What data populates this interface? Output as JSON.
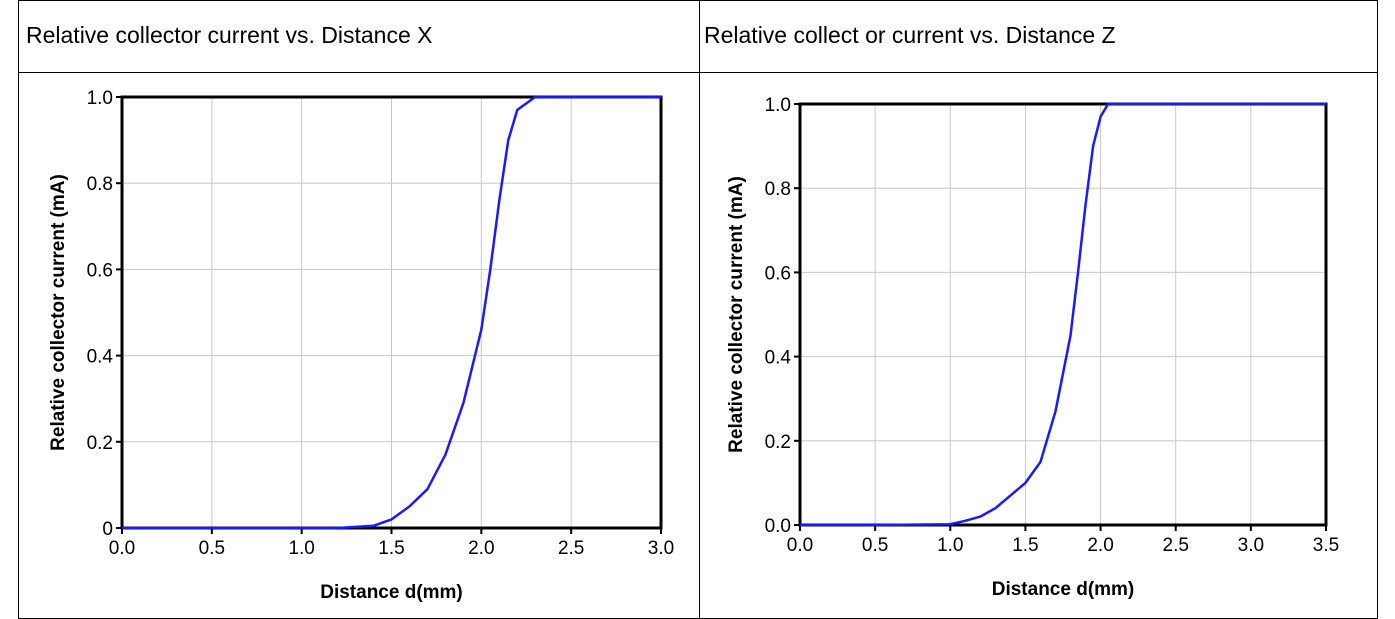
{
  "headers": {
    "left": "Relative collector current vs. Distance X",
    "right": "Relative collect or current vs. Distance Z"
  },
  "colors": {
    "curve": "#1a1aff",
    "grid": "#c8c8c8",
    "axis": "#000000"
  },
  "chart_data": [
    {
      "type": "line",
      "title": "Relative collector current vs. Distance X",
      "xlabel": "Distance d(mm)",
      "ylabel": "Relative collector current (mA)",
      "xlim": [
        0,
        3.0
      ],
      "ylim": [
        0,
        1.0
      ],
      "xticks": [
        "0.0",
        "0.5",
        "1.0",
        "1.5",
        "2.0",
        "2.5",
        "3.0"
      ],
      "yticks": [
        "0",
        "0.2",
        "0.4",
        "0.6",
        "0.8",
        "1.0"
      ],
      "grid": true,
      "series": [
        {
          "x": [
            0,
            0.5,
            1.0,
            1.2,
            1.4,
            1.5,
            1.6,
            1.7,
            1.8,
            1.9,
            2.0,
            2.05,
            2.1,
            2.15,
            2.2,
            2.3,
            2.4,
            2.5,
            3.0
          ],
          "y": [
            0.0,
            0.0,
            0.0,
            0.0,
            0.005,
            0.02,
            0.05,
            0.09,
            0.17,
            0.29,
            0.46,
            0.6,
            0.76,
            0.9,
            0.97,
            1.0,
            1.0,
            1.0,
            1.0
          ]
        }
      ]
    },
    {
      "type": "line",
      "title": "Relative collect or current vs. Distance Z",
      "xlabel": "Distance d(mm)",
      "ylabel": "Relative collector current (mA)",
      "xlim": [
        0,
        3.5
      ],
      "ylim": [
        0,
        1.0
      ],
      "xticks": [
        "0.0",
        "0.5",
        "1.0",
        "1.5",
        "2.0",
        "2.5",
        "3.0",
        "3.5"
      ],
      "yticks": [
        "0.0",
        "0.2",
        "0.4",
        "0.6",
        "0.8",
        "1.0"
      ],
      "grid": true,
      "series": [
        {
          "x": [
            0,
            0.5,
            1.0,
            1.1,
            1.2,
            1.3,
            1.5,
            1.6,
            1.7,
            1.8,
            1.85,
            1.9,
            1.95,
            2.0,
            2.05,
            2.1,
            2.2,
            2.5,
            3.0,
            3.5
          ],
          "y": [
            0.0,
            0.0,
            0.002,
            0.01,
            0.02,
            0.04,
            0.1,
            0.15,
            0.27,
            0.45,
            0.6,
            0.76,
            0.9,
            0.97,
            1.0,
            1.0,
            1.0,
            1.0,
            1.0,
            1.0
          ]
        }
      ]
    }
  ]
}
